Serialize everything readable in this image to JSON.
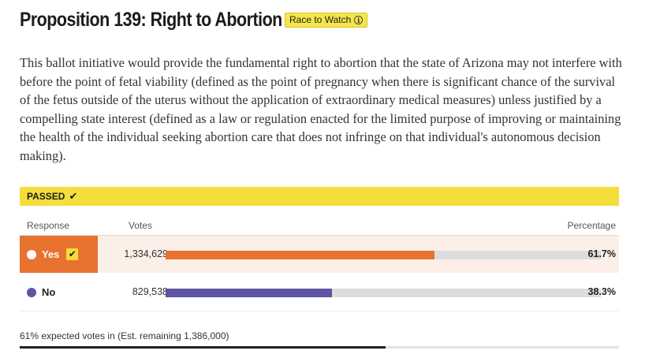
{
  "header": {
    "title": "Proposition 139: Right to Abortion",
    "badge_label": "Race to Watch",
    "badge_icon": "info-icon"
  },
  "description": "This ballot initiative would provide the fundamental right to abortion that the state of Arizona may not interfere with before the point of fetal viability (defined as the point of pregnancy when there is significant chance of the survival of the fetus outside of the uterus without the application of extraordinary medical measures) unless justified by a compelling state interest (defined as a law or regulation enacted for the limited purpose of improving or maintaining the health of the individual seeking abortion care that does not infringe on that individual's autonomous decision making).",
  "status": {
    "label": "PASSED",
    "icon": "check-icon",
    "color": "#f4de3c"
  },
  "table": {
    "columns": {
      "response": "Response",
      "votes": "Votes",
      "percentage": "Percentage"
    },
    "rows": [
      {
        "response": "Yes",
        "votes": "1,334,629",
        "percentage": "61.7%",
        "share": 0.617,
        "color": "#e8722f",
        "winner": true
      },
      {
        "response": "No",
        "votes": "829,538",
        "percentage": "38.3%",
        "share": 0.383,
        "color": "#5d54a4",
        "winner": false
      }
    ]
  },
  "footer": {
    "expected_votes_text": "61% expected votes in (Est. remaining 1,386,000)",
    "expected_fraction": 0.61
  }
}
